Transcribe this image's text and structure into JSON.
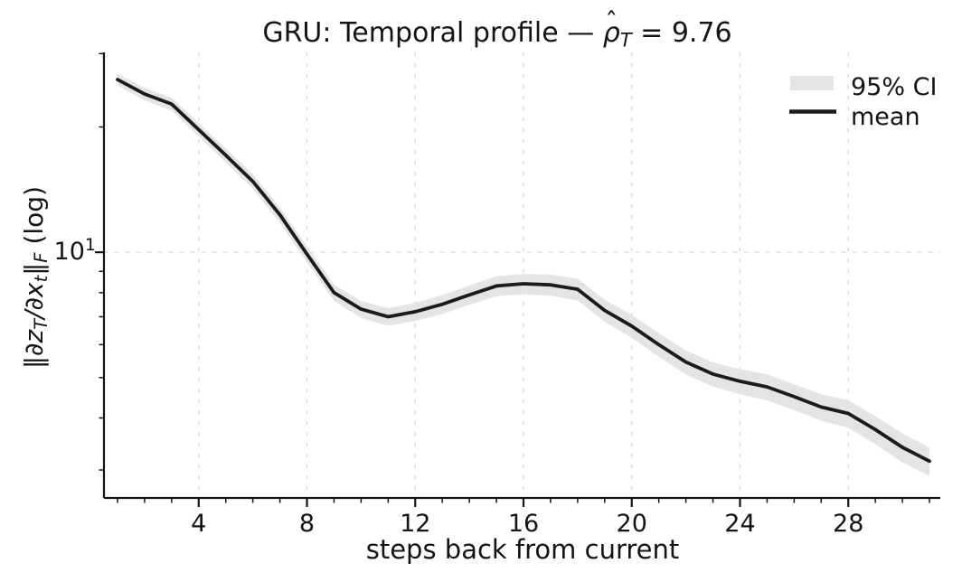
{
  "chart_data": {
    "type": "line",
    "title": "GRU: Temporal profile — ρ̂_T = 9.76",
    "title_parts": {
      "prefix": "GRU: Temporal profile — ",
      "hat": "ˆ",
      "rho": "ρ",
      "sub": "T",
      "suffix": " = 9.76"
    },
    "xlabel": "steps back from current",
    "ylabel": "‖∂z_T/∂x_t‖_F (log)",
    "ylabel_parts": [
      {
        "text": "‖"
      },
      {
        "text": "∂z"
      },
      {
        "text": "T"
      },
      {
        "text": "/∂x"
      },
      {
        "text": "t"
      },
      {
        "text": "‖"
      },
      {
        "text": "F"
      },
      {
        "text": " (log)"
      }
    ],
    "yscale": "log",
    "xlim": [
      0.5,
      31.4
    ],
    "ylim": [
      2.57,
      30.2
    ],
    "x_major_ticks": [
      4,
      8,
      12,
      16,
      20,
      24,
      28
    ],
    "x_minor_tick_step": 1,
    "x_minor_range": [
      1,
      31
    ],
    "y_major_tick": {
      "label_base": "10",
      "label_exp": "1",
      "value": 10
    },
    "y_minor_ticks": [
      3,
      4,
      5,
      6,
      7,
      8,
      9,
      20,
      30
    ],
    "grid": {
      "x_values": [
        4,
        8,
        12,
        16,
        20,
        24,
        28
      ],
      "y_values": [
        10
      ]
    },
    "legend": {
      "position": "upper right",
      "frame": false,
      "entries": [
        {
          "label": "95% CI",
          "type": "patch",
          "color": "#e4e4e4"
        },
        {
          "label": "mean",
          "type": "line",
          "color": "#1b1b1b"
        }
      ]
    },
    "x": [
      1,
      2,
      3,
      4,
      5,
      6,
      7,
      8,
      9,
      10,
      11,
      12,
      13,
      14,
      15,
      16,
      17,
      18,
      19,
      20,
      21,
      22,
      23,
      24,
      25,
      26,
      27,
      28,
      29,
      30,
      31
    ],
    "series": [
      {
        "name": "mean",
        "values": [
          26.0,
          24.0,
          22.7,
          19.7,
          17.1,
          14.8,
          12.3,
          9.9,
          8.0,
          7.3,
          7.0,
          7.2,
          7.5,
          7.9,
          8.3,
          8.4,
          8.35,
          8.15,
          7.25,
          6.65,
          6.0,
          5.45,
          5.1,
          4.9,
          4.75,
          4.5,
          4.25,
          4.1,
          3.75,
          3.4,
          3.15
        ]
      },
      {
        "name": "95% CI lower",
        "values": [
          25.14,
          23.17,
          21.88,
          18.96,
          16.43,
          14.2,
          11.78,
          9.46,
          7.64,
          6.96,
          6.66,
          6.84,
          7.11,
          7.48,
          7.84,
          7.93,
          7.86,
          7.66,
          6.81,
          6.23,
          5.61,
          5.09,
          4.76,
          4.56,
          4.41,
          4.18,
          3.94,
          3.79,
          3.46,
          3.13,
          2.9
        ]
      },
      {
        "name": "95% CI upper",
        "values": [
          26.86,
          24.83,
          23.52,
          20.44,
          17.77,
          15.4,
          12.82,
          10.34,
          8.36,
          7.64,
          7.34,
          7.56,
          7.89,
          8.32,
          8.76,
          8.87,
          8.84,
          8.64,
          7.69,
          7.07,
          6.39,
          5.81,
          5.44,
          5.24,
          5.09,
          4.82,
          4.56,
          4.41,
          4.04,
          3.67,
          3.4
        ]
      }
    ],
    "colors": {
      "mean_line": "#1b1b1b",
      "ci_band": "#e4e4e4",
      "grid": "#d7d7d7",
      "axis": "#141414",
      "text": "#141414"
    }
  }
}
